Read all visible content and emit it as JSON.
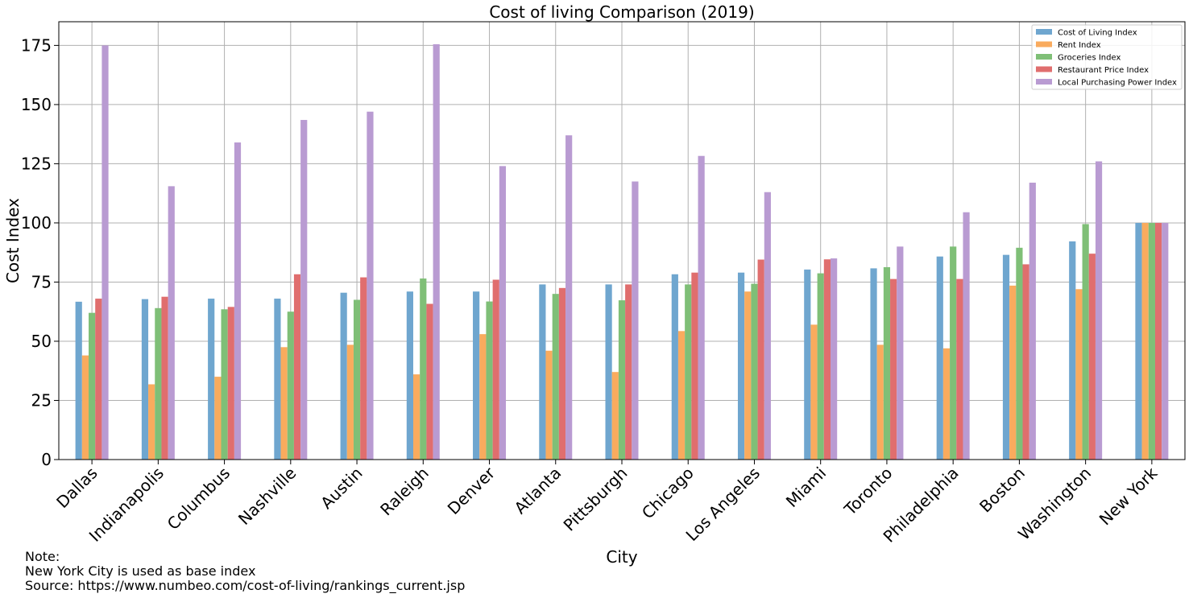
{
  "chart_data": {
    "type": "bar",
    "title": "Cost of living Comparison (2019)",
    "xlabel": "City",
    "ylabel": "Cost Index",
    "ylim": [
      0,
      185
    ],
    "yticks": [
      0,
      25,
      50,
      75,
      100,
      125,
      150,
      175
    ],
    "grid": true,
    "legend_position": "top-right",
    "categories": [
      "Dallas",
      "Indianapolis",
      "Columbus",
      "Nashville",
      "Austin",
      "Raleigh",
      "Denver",
      "Atlanta",
      "Pittsburgh",
      "Chicago",
      "Los Angeles",
      "Miami",
      "Toronto",
      "Philadelphia",
      "Boston",
      "Washington",
      "New York"
    ],
    "series": [
      {
        "name": "Cost of Living Index",
        "color": "#6fa6cf",
        "values": [
          66.7,
          67.8,
          68.0,
          68.0,
          70.5,
          71.0,
          71.0,
          74.0,
          74.0,
          78.3,
          79.0,
          80.3,
          80.8,
          85.8,
          86.5,
          92.2,
          100
        ]
      },
      {
        "name": "Rent Index",
        "color": "#f9ab5e",
        "values": [
          44.0,
          31.8,
          35.0,
          47.5,
          48.5,
          36.0,
          53.0,
          46.0,
          37.0,
          54.3,
          71.0,
          57.0,
          48.5,
          47.0,
          73.5,
          72.0,
          100
        ]
      },
      {
        "name": "Groceries Index",
        "color": "#7fbf77",
        "values": [
          62.0,
          64.0,
          63.5,
          62.5,
          67.5,
          76.5,
          66.8,
          70.0,
          67.3,
          74.0,
          74.3,
          78.7,
          81.3,
          90.0,
          89.5,
          99.5,
          100
        ]
      },
      {
        "name": "Restaurant Price Index",
        "color": "#e06e6e",
        "values": [
          68.0,
          68.8,
          64.5,
          78.3,
          77.0,
          65.8,
          76.0,
          72.5,
          74.0,
          79.0,
          84.5,
          84.6,
          76.3,
          76.3,
          82.5,
          87.0,
          100
        ]
      },
      {
        "name": "Local Purchasing Power Index",
        "color": "#b99bd2",
        "values": [
          175.0,
          115.5,
          134.0,
          143.5,
          147.0,
          175.5,
          124.0,
          137.0,
          117.5,
          128.3,
          113.0,
          85.0,
          90.0,
          104.5,
          117.0,
          126.0,
          100
        ]
      }
    ]
  },
  "notes": [
    "Note:",
    "New York City is used as base index",
    "Source: https://www.numbeo.com/cost-of-living/rankings_current.jsp"
  ]
}
